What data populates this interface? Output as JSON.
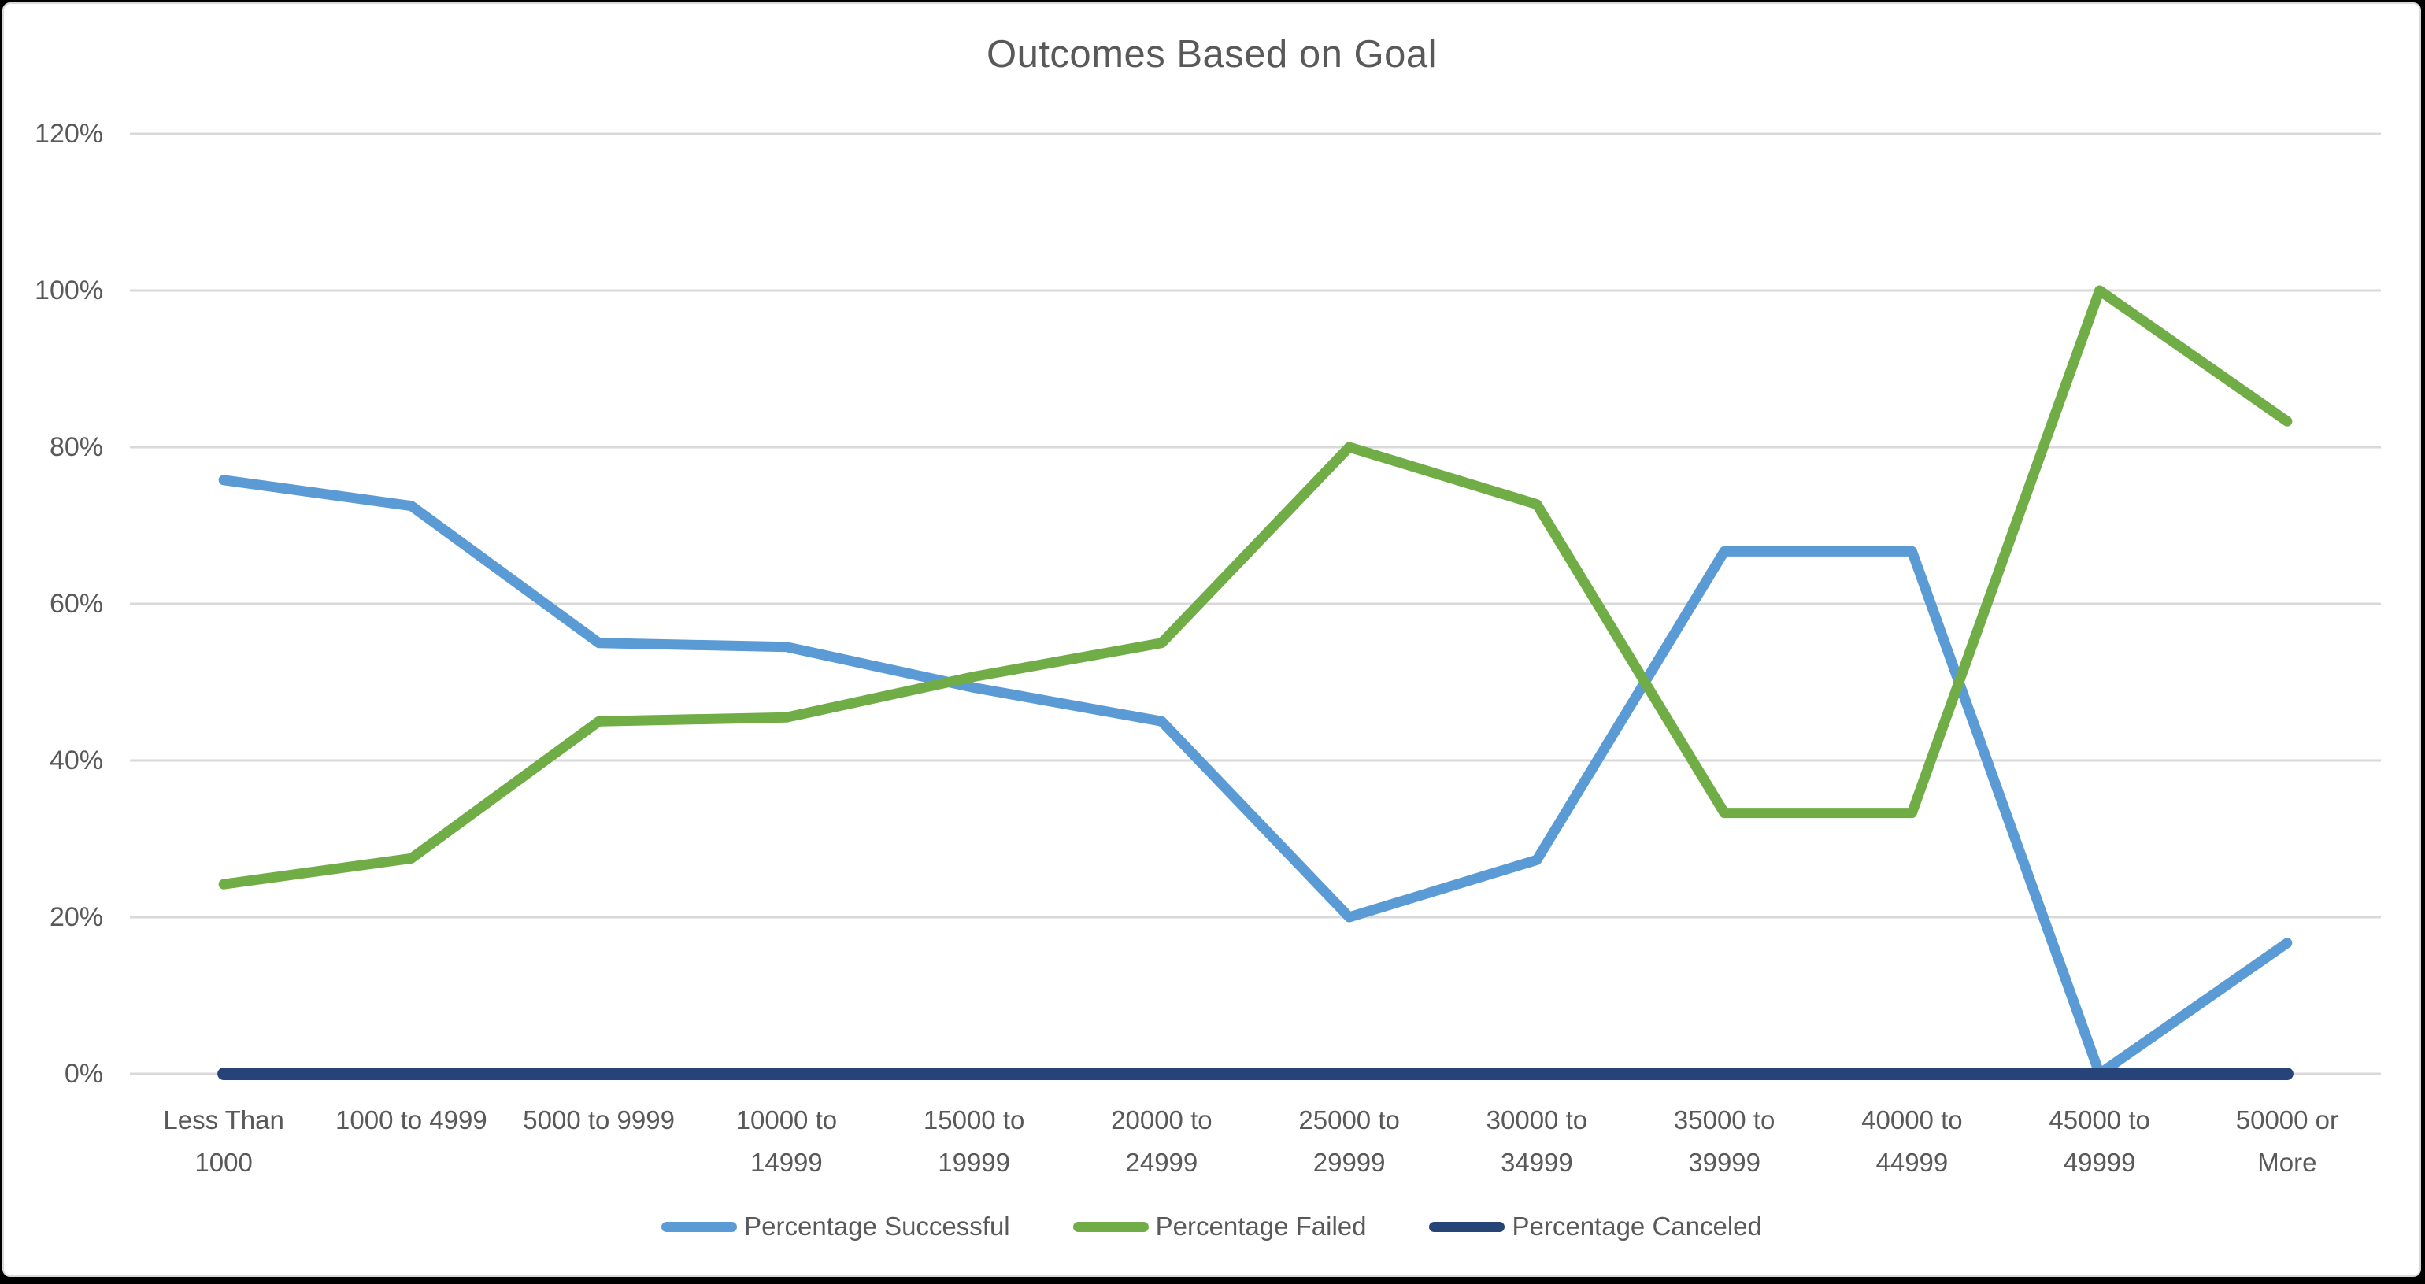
{
  "chart_data": {
    "type": "line",
    "title": "Outcomes Based on Goal",
    "categories": [
      "Less Than 1000",
      "1000 to 4999",
      "5000 to 9999",
      "10000 to 14999",
      "15000 to 19999",
      "20000 to 24999",
      "25000 to 29999",
      "30000 to 34999",
      "35000 to 39999",
      "40000 to 44999",
      "45000 to 49999",
      "50000 or More"
    ],
    "category_label_lines": [
      [
        "Less Than",
        "1000"
      ],
      [
        "1000 to 4999"
      ],
      [
        "5000 to 9999"
      ],
      [
        "10000 to",
        "14999"
      ],
      [
        "15000 to",
        "19999"
      ],
      [
        "20000 to",
        "24999"
      ],
      [
        "25000 to",
        "29999"
      ],
      [
        "30000 to",
        "34999"
      ],
      [
        "35000 to",
        "39999"
      ],
      [
        "40000 to",
        "44999"
      ],
      [
        "45000 to",
        "49999"
      ],
      [
        "50000 or",
        "More"
      ]
    ],
    "series": [
      {
        "name": "Percentage Successful",
        "color": "#5B9BD5",
        "values": [
          75.8,
          72.5,
          55,
          54.5,
          49.3,
          45,
          20,
          27.3,
          66.7,
          66.7,
          0,
          16.7
        ]
      },
      {
        "name": "Percentage Failed",
        "color": "#70AD47",
        "values": [
          24.2,
          27.5,
          45,
          45.5,
          50.7,
          55,
          80,
          72.7,
          33.3,
          33.3,
          100,
          83.3
        ]
      },
      {
        "name": "Percentage Canceled",
        "color": "#264478",
        "values": [
          0,
          0,
          0,
          0,
          0,
          0,
          0,
          0,
          0,
          0,
          0,
          0
        ]
      }
    ],
    "y_axis": {
      "tick_labels": [
        "0%",
        "20%",
        "40%",
        "60%",
        "80%",
        "100%",
        "120%"
      ],
      "min": 0,
      "max": 120,
      "step": 20
    },
    "grid": true,
    "legend_position": "bottom",
    "colors": {
      "gridline": "#d9d9d9",
      "text": "#595959",
      "background": "#ffffff",
      "frame": "#000000"
    }
  }
}
